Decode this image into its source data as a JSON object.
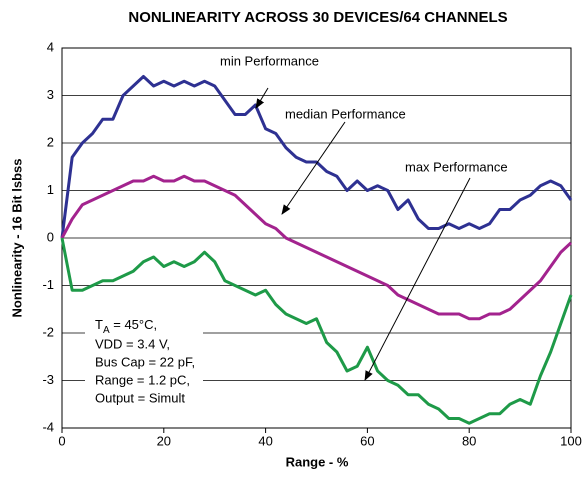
{
  "chart_data": {
    "type": "line",
    "title": "NONLINEARITY ACROSS 30 DEVICES/64 CHANNELS",
    "xlabel": "Range - %",
    "ylabel": "Nonlinearity - 16 Bit lsbss",
    "x": [
      0,
      2,
      4,
      6,
      8,
      10,
      12,
      14,
      16,
      18,
      20,
      22,
      24,
      26,
      28,
      30,
      32,
      34,
      36,
      38,
      40,
      42,
      44,
      46,
      48,
      50,
      52,
      54,
      56,
      58,
      60,
      62,
      64,
      66,
      68,
      70,
      72,
      74,
      76,
      78,
      80,
      82,
      84,
      86,
      88,
      90,
      92,
      94,
      96,
      98,
      100
    ],
    "series": [
      {
        "name": "min Performance",
        "color": "#2e3192",
        "values": [
          0,
          1.7,
          2.0,
          2.2,
          2.5,
          2.5,
          3.0,
          3.2,
          3.4,
          3.2,
          3.3,
          3.2,
          3.3,
          3.2,
          3.3,
          3.2,
          2.9,
          2.6,
          2.6,
          2.8,
          2.3,
          2.2,
          1.9,
          1.7,
          1.6,
          1.6,
          1.4,
          1.3,
          1.0,
          1.2,
          1.0,
          1.1,
          1.0,
          0.6,
          0.8,
          0.4,
          0.2,
          0.2,
          0.3,
          0.2,
          0.3,
          0.2,
          0.3,
          0.6,
          0.6,
          0.8,
          0.9,
          1.1,
          1.2,
          1.1,
          0.8
        ]
      },
      {
        "name": "median Performance",
        "color": "#a3238e",
        "values": [
          0,
          0.4,
          0.7,
          0.8,
          0.9,
          1.0,
          1.1,
          1.2,
          1.2,
          1.3,
          1.2,
          1.2,
          1.3,
          1.2,
          1.2,
          1.1,
          1.0,
          0.9,
          0.7,
          0.5,
          0.3,
          0.2,
          0.0,
          -0.1,
          -0.2,
          -0.3,
          -0.4,
          -0.5,
          -0.6,
          -0.7,
          -0.8,
          -0.9,
          -1.0,
          -1.2,
          -1.3,
          -1.4,
          -1.5,
          -1.6,
          -1.6,
          -1.6,
          -1.7,
          -1.7,
          -1.6,
          -1.6,
          -1.5,
          -1.3,
          -1.1,
          -0.9,
          -0.6,
          -0.3,
          -0.1
        ]
      },
      {
        "name": "max Performance",
        "color": "#1e9a48",
        "values": [
          0,
          -1.1,
          -1.1,
          -1.0,
          -0.9,
          -0.9,
          -0.8,
          -0.7,
          -0.5,
          -0.4,
          -0.6,
          -0.5,
          -0.6,
          -0.5,
          -0.3,
          -0.5,
          -0.9,
          -1.0,
          -1.1,
          -1.2,
          -1.1,
          -1.4,
          -1.6,
          -1.7,
          -1.8,
          -1.7,
          -2.2,
          -2.4,
          -2.8,
          -2.7,
          -2.3,
          -2.8,
          -3.0,
          -3.1,
          -3.3,
          -3.3,
          -3.5,
          -3.6,
          -3.8,
          -3.8,
          -3.9,
          -3.8,
          -3.7,
          -3.7,
          -3.5,
          -3.4,
          -3.5,
          -2.9,
          -2.4,
          -1.8,
          -1.2
        ]
      }
    ],
    "xlim": [
      0,
      100
    ],
    "xticks": [
      0,
      20,
      40,
      60,
      80,
      100
    ],
    "ylim": [
      -4,
      4
    ],
    "yticks": [
      -4,
      -3,
      -2,
      -1,
      0,
      1,
      2,
      3,
      4
    ],
    "grid": true,
    "conditions": {
      "symbol": "T",
      "subscript": "A",
      "text": " = 45°C,",
      "lines": [
        "VDD = 3.4 V,",
        "Bus Cap = 22 pF,",
        "Range = 1.2 pC,",
        "Output = Simult"
      ]
    }
  }
}
